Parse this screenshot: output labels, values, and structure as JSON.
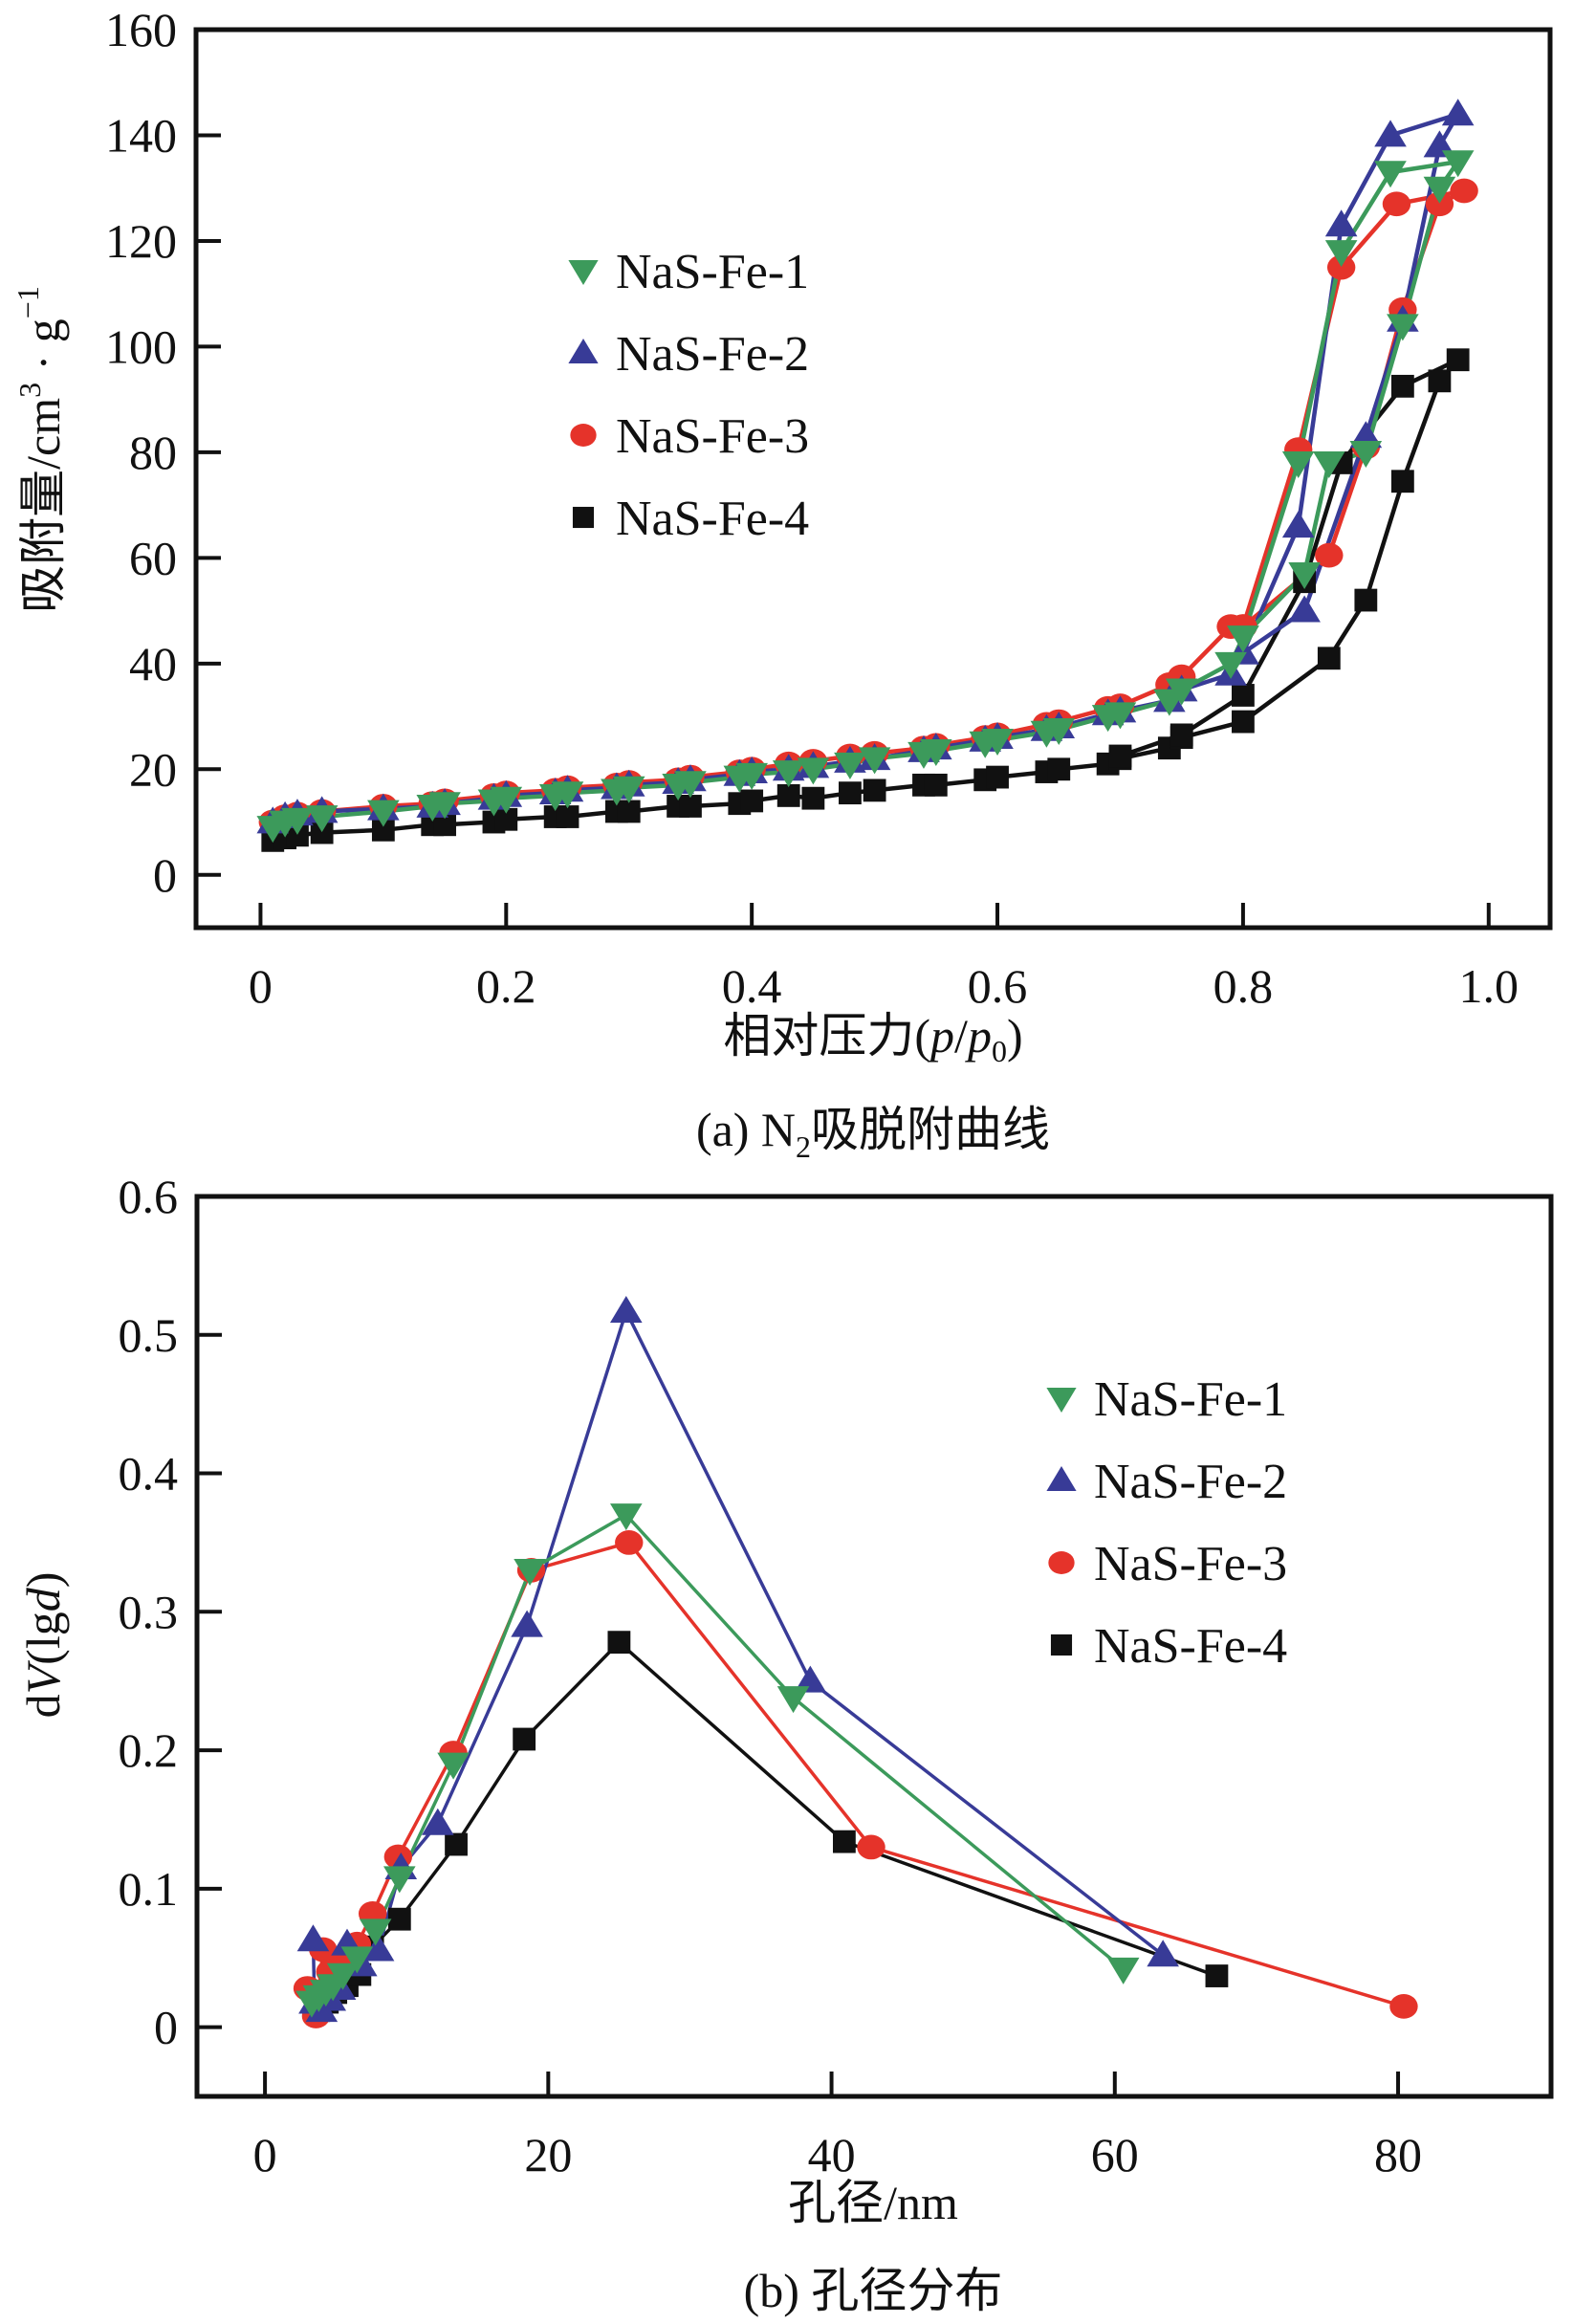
{
  "colors": {
    "NaS-Fe-1": "#3c9a5b",
    "NaS-Fe-2": "#383b97",
    "NaS-Fe-3": "#e5332a",
    "NaS-Fe-4": "#111111",
    "axis": "#111111"
  },
  "chart_data": [
    {
      "id": "a",
      "type": "line",
      "title": "",
      "caption_prefix": "(a) N",
      "caption_sub": "2",
      "caption_suffix": "吸脱附曲线",
      "xlabel_main": "相对压力(",
      "xlabel_p": "p",
      "xlabel_slash": "/",
      "xlabel_p0": "p",
      "xlabel_sub": "0",
      "xlabel_close": ")",
      "ylabel_main": "吸附量/cm",
      "ylabel_sup": "3",
      "ylabel_mid": " · g",
      "ylabel_sup2": "−1",
      "xlim": [
        -0.0525,
        1.05
      ],
      "ylim": [
        -10,
        160
      ],
      "xticks": [
        0,
        0.2,
        0.4,
        0.6,
        0.8,
        1.0
      ],
      "xtick_labels": [
        "0",
        "0.2",
        "0.4",
        "0.6",
        "0.8",
        "1.0"
      ],
      "yticks": [
        0,
        20,
        40,
        60,
        80,
        100,
        120,
        140,
        160
      ],
      "ytick_labels": [
        "0",
        "20",
        "40",
        "60",
        "80",
        "100",
        "120",
        "140",
        "160"
      ],
      "grid": false,
      "legend_position": "upper-center-left",
      "series": [
        {
          "name": "NaS-Fe-1",
          "marker": "triangle-down",
          "points": [
            [
              0.01,
              9
            ],
            [
              0.02,
              10
            ],
            [
              0.03,
              10.5
            ],
            [
              0.05,
              11
            ],
            [
              0.1,
              12
            ],
            [
              0.14,
              13
            ],
            [
              0.15,
              13.5
            ],
            [
              0.19,
              14
            ],
            [
              0.2,
              14.5
            ],
            [
              0.24,
              15
            ],
            [
              0.25,
              15.5
            ],
            [
              0.29,
              16
            ],
            [
              0.3,
              16.5
            ],
            [
              0.34,
              17
            ],
            [
              0.35,
              17.5
            ],
            [
              0.39,
              18.5
            ],
            [
              0.4,
              19
            ],
            [
              0.43,
              19.5
            ],
            [
              0.45,
              20
            ],
            [
              0.48,
              21
            ],
            [
              0.5,
              22
            ],
            [
              0.54,
              23
            ],
            [
              0.55,
              23.5
            ],
            [
              0.59,
              25
            ],
            [
              0.6,
              25.5
            ],
            [
              0.64,
              27
            ],
            [
              0.65,
              27.5
            ],
            [
              0.69,
              30
            ],
            [
              0.7,
              30.5
            ],
            [
              0.74,
              33
            ],
            [
              0.75,
              35
            ],
            [
              0.79,
              40
            ],
            [
              0.8,
              45
            ],
            [
              0.85,
              57
            ],
            [
              0.87,
              78
            ],
            [
              0.9,
              80
            ],
            [
              0.93,
              104
            ],
            [
              0.96,
              130
            ],
            [
              0.975,
              135
            ],
            [
              0.92,
              133
            ],
            [
              0.88,
              118
            ],
            [
              0.845,
              78
            ],
            [
              0.8,
              45
            ]
          ]
        },
        {
          "name": "NaS-Fe-2",
          "marker": "triangle-up",
          "points": [
            [
              0.01,
              10
            ],
            [
              0.02,
              11
            ],
            [
              0.03,
              11.5
            ],
            [
              0.05,
              12
            ],
            [
              0.1,
              12.5
            ],
            [
              0.14,
              13
            ],
            [
              0.15,
              13.5
            ],
            [
              0.19,
              14.5
            ],
            [
              0.2,
              15
            ],
            [
              0.24,
              15.5
            ],
            [
              0.25,
              16
            ],
            [
              0.29,
              16.5
            ],
            [
              0.3,
              17
            ],
            [
              0.34,
              17.5
            ],
            [
              0.35,
              18
            ],
            [
              0.39,
              19
            ],
            [
              0.4,
              19.5
            ],
            [
              0.43,
              20
            ],
            [
              0.45,
              20.5
            ],
            [
              0.48,
              21.5
            ],
            [
              0.5,
              22
            ],
            [
              0.54,
              23.5
            ],
            [
              0.55,
              24
            ],
            [
              0.59,
              25.5
            ],
            [
              0.6,
              26
            ],
            [
              0.64,
              27.5
            ],
            [
              0.65,
              28
            ],
            [
              0.69,
              30.5
            ],
            [
              0.7,
              31
            ],
            [
              0.74,
              33
            ],
            [
              0.75,
              35
            ],
            [
              0.79,
              38
            ],
            [
              0.8,
              42
            ],
            [
              0.85,
              50
            ],
            [
              0.9,
              83
            ],
            [
              0.93,
              105
            ],
            [
              0.96,
              138
            ],
            [
              0.975,
              144
            ],
            [
              0.92,
              140
            ],
            [
              0.88,
              123
            ],
            [
              0.845,
              66
            ],
            [
              0.8,
              42
            ]
          ]
        },
        {
          "name": "NaS-Fe-3",
          "marker": "circle",
          "points": [
            [
              0.01,
              10
            ],
            [
              0.02,
              11
            ],
            [
              0.03,
              11.5
            ],
            [
              0.05,
              12
            ],
            [
              0.1,
              13
            ],
            [
              0.14,
              13.5
            ],
            [
              0.15,
              14
            ],
            [
              0.19,
              15
            ],
            [
              0.2,
              15.5
            ],
            [
              0.24,
              16
            ],
            [
              0.25,
              16.5
            ],
            [
              0.29,
              17
            ],
            [
              0.3,
              17.5
            ],
            [
              0.34,
              18
            ],
            [
              0.35,
              18.5
            ],
            [
              0.39,
              19.5
            ],
            [
              0.4,
              20
            ],
            [
              0.43,
              21
            ],
            [
              0.45,
              21.5
            ],
            [
              0.48,
              22.5
            ],
            [
              0.5,
              23
            ],
            [
              0.54,
              24
            ],
            [
              0.55,
              24.5
            ],
            [
              0.59,
              26
            ],
            [
              0.6,
              26.5
            ],
            [
              0.64,
              28.5
            ],
            [
              0.65,
              29
            ],
            [
              0.69,
              31.5
            ],
            [
              0.7,
              32
            ],
            [
              0.74,
              36
            ],
            [
              0.75,
              37.5
            ],
            [
              0.79,
              47
            ],
            [
              0.8,
              47
            ],
            [
              0.87,
              60.5
            ],
            [
              0.9,
              81
            ],
            [
              0.93,
              107
            ],
            [
              0.96,
              127
            ],
            [
              0.98,
              129.5
            ],
            [
              0.925,
              127
            ],
            [
              0.88,
              115
            ],
            [
              0.845,
              80.5
            ],
            [
              0.8,
              47
            ]
          ]
        },
        {
          "name": "NaS-Fe-4",
          "marker": "square",
          "points": [
            [
              0.01,
              6.5
            ],
            [
              0.02,
              7
            ],
            [
              0.03,
              7.5
            ],
            [
              0.05,
              8
            ],
            [
              0.1,
              8.5
            ],
            [
              0.14,
              9.5
            ],
            [
              0.15,
              9.5
            ],
            [
              0.19,
              10
            ],
            [
              0.2,
              10.5
            ],
            [
              0.24,
              11
            ],
            [
              0.25,
              11
            ],
            [
              0.29,
              12
            ],
            [
              0.3,
              12
            ],
            [
              0.34,
              13
            ],
            [
              0.35,
              13
            ],
            [
              0.39,
              13.5
            ],
            [
              0.4,
              14
            ],
            [
              0.43,
              15
            ],
            [
              0.45,
              14.5
            ],
            [
              0.48,
              15.5
            ],
            [
              0.5,
              16
            ],
            [
              0.54,
              17
            ],
            [
              0.55,
              17
            ],
            [
              0.59,
              18
            ],
            [
              0.6,
              18.5
            ],
            [
              0.64,
              19.5
            ],
            [
              0.65,
              20
            ],
            [
              0.69,
              21
            ],
            [
              0.7,
              22
            ],
            [
              0.74,
              24
            ],
            [
              0.75,
              26
            ],
            [
              0.8,
              29
            ],
            [
              0.87,
              41
            ],
            [
              0.9,
              52
            ],
            [
              0.93,
              74.5
            ],
            [
              0.96,
              93.5
            ],
            [
              0.975,
              97.5
            ],
            [
              0.93,
              92.5
            ],
            [
              0.88,
              78
            ],
            [
              0.85,
              55.5
            ],
            [
              0.8,
              34
            ],
            [
              0.75,
              26.5
            ],
            [
              0.7,
              22.5
            ]
          ]
        }
      ]
    },
    {
      "id": "b",
      "type": "line",
      "title": "",
      "caption_prefix": "(b) ",
      "caption_suffix": "孔径分布",
      "xlabel": "孔径/nm",
      "ylabel_d": "d",
      "ylabel_V": "V",
      "ylabel_mid": "(lg",
      "ylabel_dd": "d",
      "ylabel_close": ")",
      "xlim": [
        -4.8,
        90.8
      ],
      "ylim": [
        -0.05,
        0.6
      ],
      "xticks": [
        0,
        20,
        40,
        60,
        80
      ],
      "xtick_labels": [
        "0",
        "20",
        "40",
        "60",
        "80"
      ],
      "yticks": [
        0,
        0.1,
        0.2,
        0.3,
        0.4,
        0.5,
        0.6
      ],
      "ytick_labels": [
        "0",
        "0.1",
        "0.2",
        "0.3",
        "0.4",
        "0.5",
        "0.6"
      ],
      "grid": false,
      "legend_position": "upper-right",
      "series": [
        {
          "name": "NaS-Fe-1",
          "marker": "triangle-down",
          "points": [
            [
              3.3,
              0.018
            ],
            [
              3.8,
              0.022
            ],
            [
              4.3,
              0.026
            ],
            [
              4.8,
              0.03
            ],
            [
              5.5,
              0.038
            ],
            [
              6.5,
              0.05
            ],
            [
              7.8,
              0.07
            ],
            [
              9.5,
              0.108
            ],
            [
              13.3,
              0.19
            ],
            [
              18.7,
              0.33
            ],
            [
              25.5,
              0.37
            ],
            [
              37.3,
              0.238
            ],
            [
              60.6,
              0.042
            ]
          ]
        },
        {
          "name": "NaS-Fe-2",
          "marker": "triangle-up",
          "points": [
            [
              3.4,
              0.063
            ],
            [
              3.5,
              0.018
            ],
            [
              4.0,
              0.012
            ],
            [
              4.6,
              0.02
            ],
            [
              5.3,
              0.028
            ],
            [
              5.8,
              0.06
            ],
            [
              6.8,
              0.045
            ],
            [
              8.0,
              0.056
            ],
            [
              9.6,
              0.115
            ],
            [
              12.2,
              0.147
            ],
            [
              18.5,
              0.29
            ],
            [
              25.5,
              0.517
            ],
            [
              38.5,
              0.25
            ],
            [
              63.4,
              0.052
            ]
          ]
        },
        {
          "name": "NaS-Fe-3",
          "marker": "circle",
          "points": [
            [
              3.0,
              0.028
            ],
            [
              3.6,
              0.008
            ],
            [
              4.1,
              0.056
            ],
            [
              4.6,
              0.04
            ],
            [
              5.5,
              0.045
            ],
            [
              6.5,
              0.06
            ],
            [
              7.6,
              0.082
            ],
            [
              9.4,
              0.123
            ],
            [
              13.3,
              0.198
            ],
            [
              18.8,
              0.33
            ],
            [
              25.7,
              0.35
            ],
            [
              42.8,
              0.13
            ],
            [
              80.4,
              0.015
            ]
          ]
        },
        {
          "name": "NaS-Fe-4",
          "marker": "square",
          "points": [
            [
              3.8,
              0.012
            ],
            [
              4.4,
              0.018
            ],
            [
              5.0,
              0.025
            ],
            [
              5.8,
              0.03
            ],
            [
              6.7,
              0.038
            ],
            [
              7.6,
              0.058
            ],
            [
              9.5,
              0.078
            ],
            [
              13.5,
              0.132
            ],
            [
              18.3,
              0.208
            ],
            [
              25.0,
              0.278
            ],
            [
              40.9,
              0.134
            ],
            [
              67.2,
              0.037
            ]
          ]
        }
      ]
    }
  ]
}
